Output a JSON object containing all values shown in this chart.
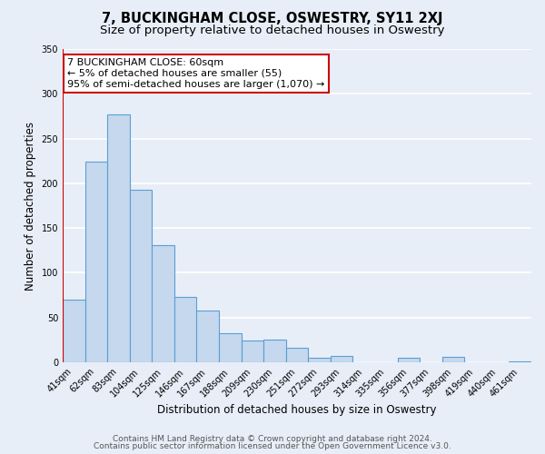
{
  "title": "7, BUCKINGHAM CLOSE, OSWESTRY, SY11 2XJ",
  "subtitle": "Size of property relative to detached houses in Oswestry",
  "xlabel": "Distribution of detached houses by size in Oswestry",
  "ylabel": "Number of detached properties",
  "categories": [
    "41sqm",
    "62sqm",
    "83sqm",
    "104sqm",
    "125sqm",
    "146sqm",
    "167sqm",
    "188sqm",
    "209sqm",
    "230sqm",
    "251sqm",
    "272sqm",
    "293sqm",
    "314sqm",
    "335sqm",
    "356sqm",
    "377sqm",
    "398sqm",
    "419sqm",
    "440sqm",
    "461sqm"
  ],
  "values": [
    70,
    224,
    277,
    193,
    131,
    73,
    58,
    33,
    24,
    25,
    16,
    5,
    7,
    0,
    0,
    5,
    0,
    6,
    0,
    0,
    1
  ],
  "bar_color": "#c5d8ed",
  "bar_edge_color": "#5a9fd4",
  "vline_color": "#cc0000",
  "vline_x_index": 0.5,
  "annotation_text_line1": "7 BUCKINGHAM CLOSE: 60sqm",
  "annotation_text_line2": "← 5% of detached houses are smaller (55)",
  "annotation_text_line3": "95% of semi-detached houses are larger (1,070) →",
  "annotation_box_facecolor": "#ffffff",
  "annotation_box_edgecolor": "#cc0000",
  "ylim": [
    0,
    350
  ],
  "yticks": [
    0,
    50,
    100,
    150,
    200,
    250,
    300,
    350
  ],
  "footer_line1": "Contains HM Land Registry data © Crown copyright and database right 2024.",
  "footer_line2": "Contains public sector information licensed under the Open Government Licence v3.0.",
  "bg_color": "#e8eef8",
  "plot_bg_color": "#e8eef8",
  "grid_color": "#ffffff",
  "title_fontsize": 10.5,
  "subtitle_fontsize": 9.5,
  "label_fontsize": 8.5,
  "tick_fontsize": 7,
  "annotation_fontsize": 8,
  "footer_fontsize": 6.5
}
